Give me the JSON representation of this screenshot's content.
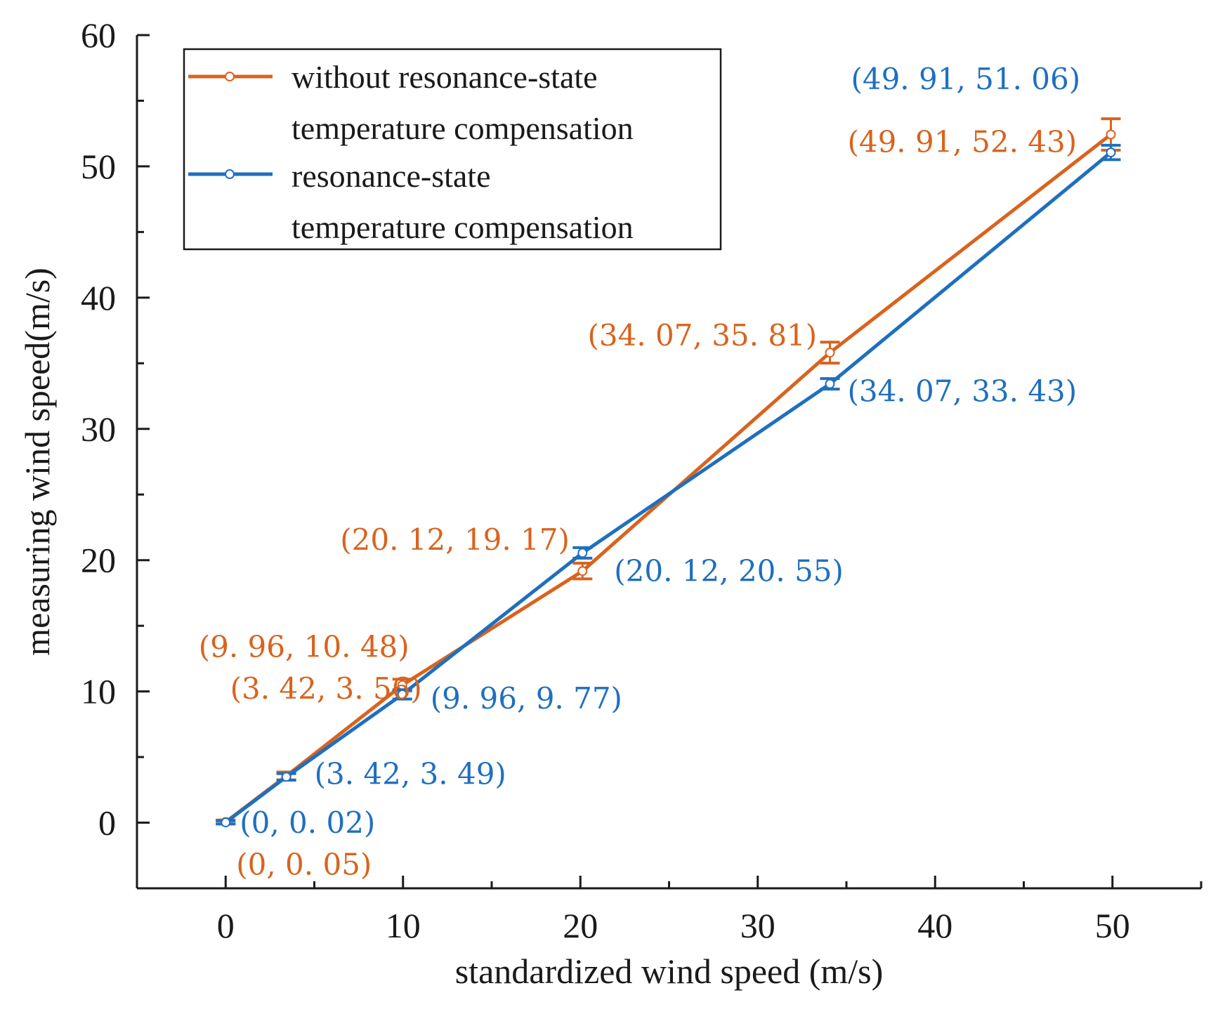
{
  "chart_data": {
    "type": "line",
    "xlabel": "standardized wind speed (m/s)",
    "ylabel": "measuring wind speed(m/s)",
    "xlim": [
      -5,
      55
    ],
    "ylim": [
      -5,
      60
    ],
    "xticks": [
      0,
      10,
      20,
      30,
      40,
      50
    ],
    "yticks": [
      0,
      10,
      20,
      30,
      40,
      50,
      60
    ],
    "xtick_labels": [
      "0",
      "10",
      "20",
      "30",
      "40",
      "50"
    ],
    "ytick_labels": [
      "0",
      "10",
      "20",
      "30",
      "40",
      "50",
      "60"
    ],
    "legend_position": "top-left",
    "series": [
      {
        "name": "without resonance-state temperature compensation",
        "legend_lines": [
          "without  resonance-state",
          "temperature compensation"
        ],
        "color": "#D9631E",
        "x": [
          0,
          3.42,
          9.96,
          20.12,
          34.07,
          49.91
        ],
        "y": [
          0.05,
          3.56,
          10.48,
          19.17,
          35.81,
          52.43
        ],
        "error": [
          0.15,
          0.3,
          0.45,
          0.6,
          0.8,
          1.2
        ],
        "labels": [
          "(0, 0. 05)",
          "(3. 42, 3. 56)",
          "(9. 96, 10. 48)",
          "(20. 12, 19. 17)",
          "(34. 07, 35. 81)",
          "(49. 91, 52. 43)"
        ]
      },
      {
        "name": "resonance-state temperature compensation",
        "legend_lines": [
          "resonance-state",
          "temperature compensation"
        ],
        "color": "#1F6FBF",
        "x": [
          0,
          3.42,
          9.96,
          20.12,
          34.07,
          49.91
        ],
        "y": [
          0.02,
          3.49,
          9.77,
          20.55,
          33.43,
          51.06
        ],
        "error": [
          0.12,
          0.25,
          0.35,
          0.4,
          0.4,
          0.55
        ],
        "labels": [
          "(0, 0. 02)",
          "(3. 42, 3. 49)",
          "(9. 96, 9. 77)",
          "(20. 12, 20. 55)",
          "(34. 07, 33. 43)",
          "(49. 91, 51. 06)"
        ]
      }
    ]
  }
}
